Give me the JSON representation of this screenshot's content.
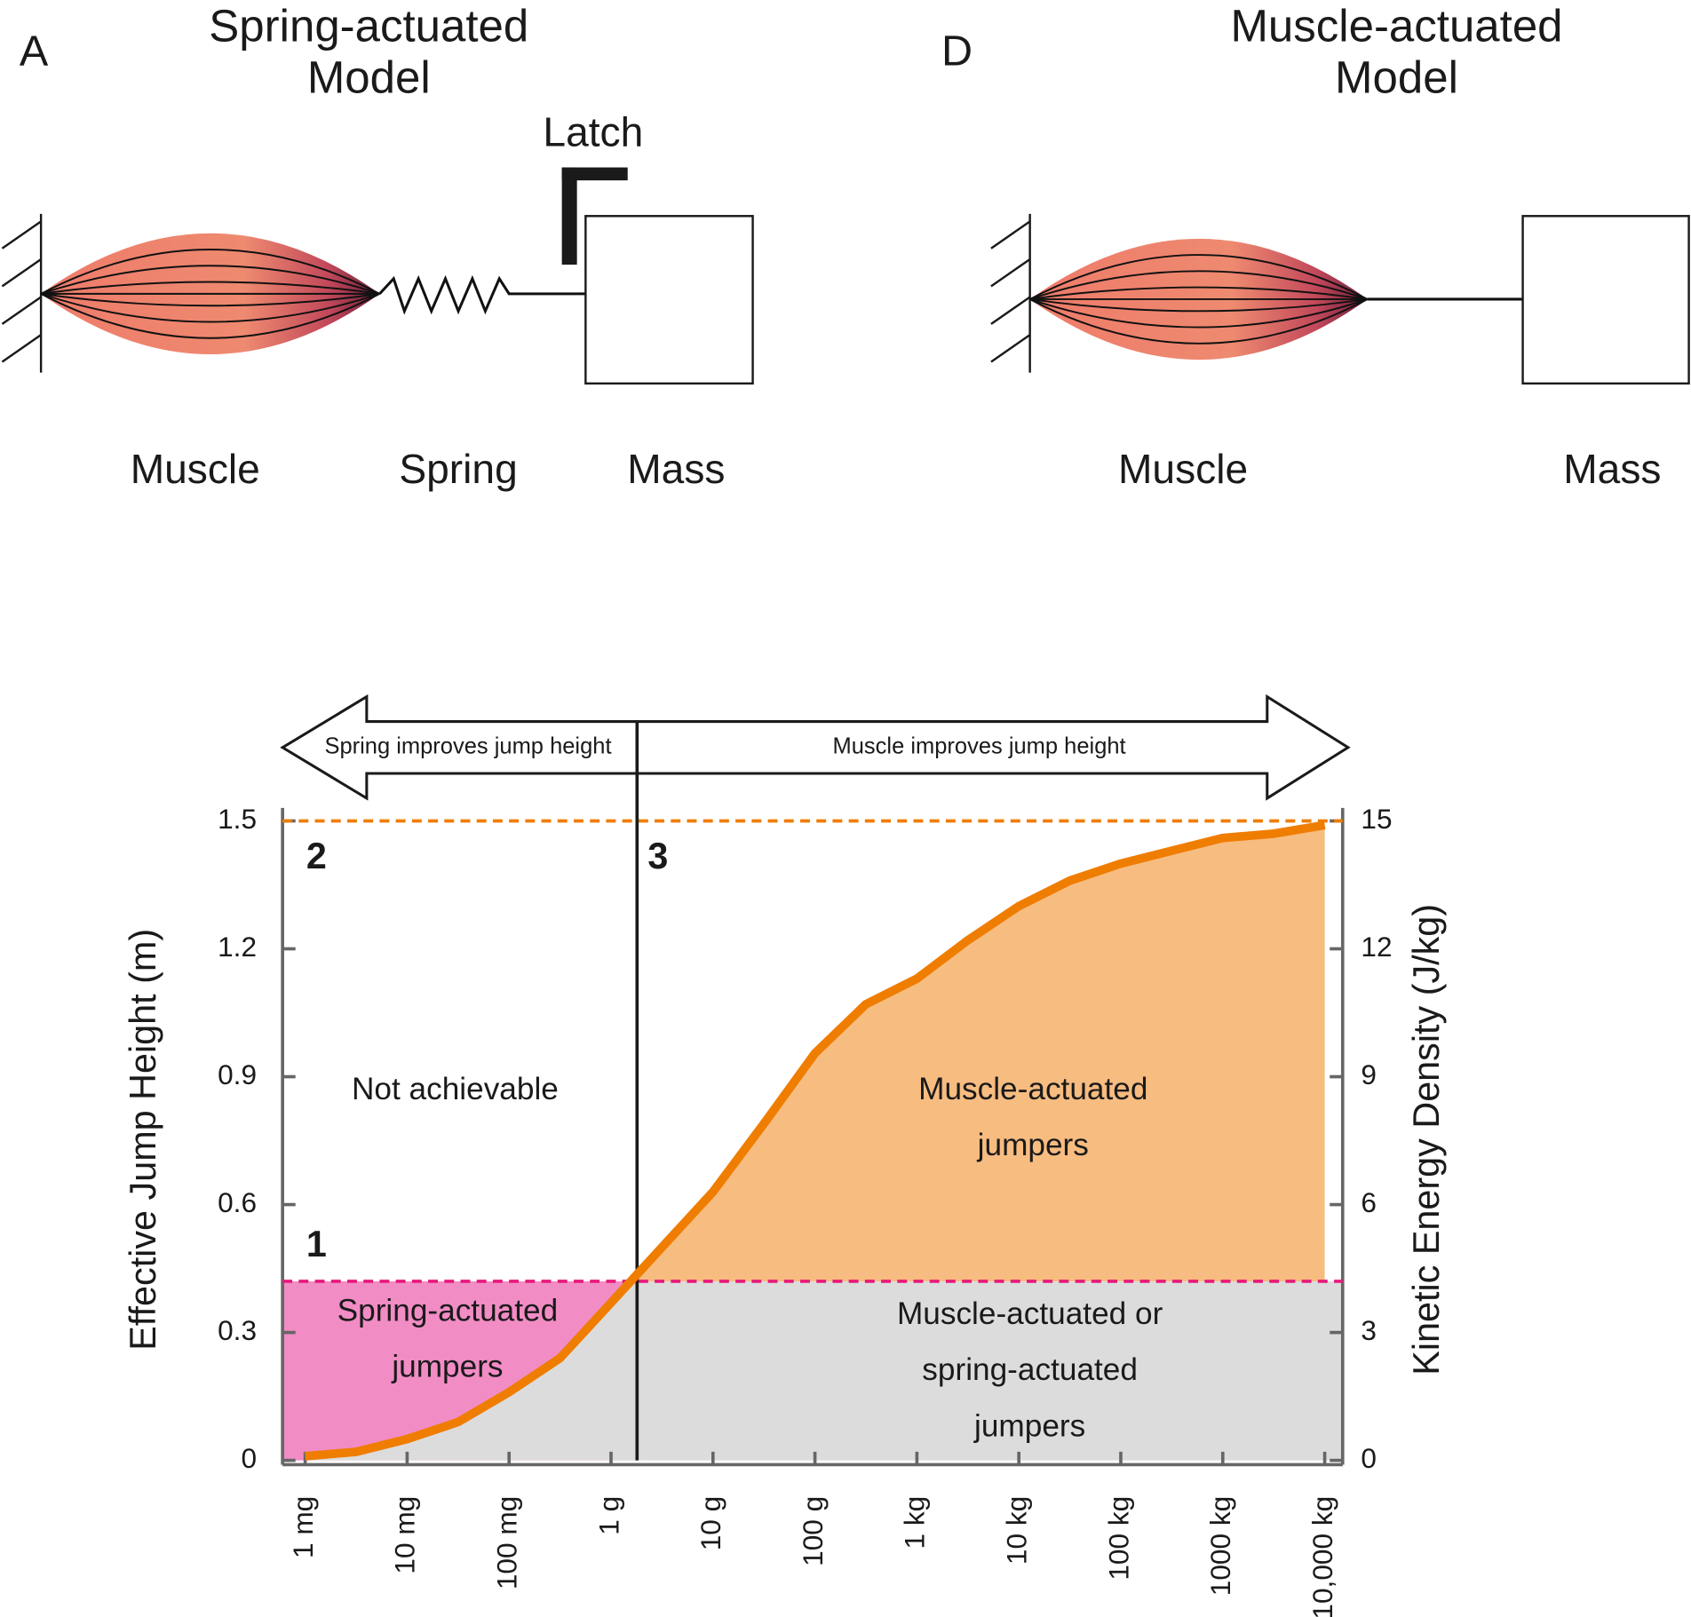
{
  "panels": [
    {
      "letter": "A",
      "title": [
        "Spring-actuated",
        "Model"
      ],
      "latch": "Latch",
      "labels": [
        "Muscle",
        "Spring",
        "Mass"
      ]
    },
    {
      "letter": "D",
      "title": [
        "Muscle-actuated",
        "Model"
      ],
      "labels": [
        "Muscle",
        "Mass"
      ]
    }
  ],
  "chart_data": {
    "type": "line",
    "y_label": "Effective Jump Height (m)",
    "y2_label": "Kinetic Energy Density (J/kg)",
    "log_x": true,
    "x": [
      0.001,
      0.00316,
      0.01,
      0.0316,
      0.1,
      0.316,
      1,
      3.16,
      10,
      31.6,
      100,
      316,
      1000,
      3160,
      10000,
      31600,
      100000,
      316000,
      1000000,
      3160000,
      10000000
    ],
    "series": [
      {
        "color": "#ef7d00",
        "values": [
          0.01,
          0.02,
          0.05,
          0.09,
          0.16,
          0.24,
          0.37,
          0.5,
          0.63,
          0.79,
          0.955,
          1.07,
          1.13,
          1.22,
          1.3,
          1.36,
          1.4,
          1.43,
          1.46,
          1.47,
          1.49
        ]
      }
    ],
    "xlim": [
      0.0006,
      15000000
    ],
    "xticks": [
      {
        "value": 0.001,
        "label": "1 mg"
      },
      {
        "value": 0.01,
        "label": "10 mg"
      },
      {
        "value": 0.1,
        "label": "100 mg"
      },
      {
        "value": 1,
        "label": "1 g"
      },
      {
        "value": 10,
        "label": "10 g"
      },
      {
        "value": 100,
        "label": "100 g"
      },
      {
        "value": 1000,
        "label": "1 kg"
      },
      {
        "value": 10000,
        "label": "10 kg"
      },
      {
        "value": 100000,
        "label": "100 kg"
      },
      {
        "value": 1000000,
        "label": "1000 kg"
      },
      {
        "value": 10000000,
        "label": "10,000 kg"
      }
    ],
    "ylim": [
      0,
      1.5
    ],
    "yticks": [
      0,
      0.3,
      0.6,
      0.9,
      1.2,
      1.5
    ],
    "y2lim": [
      0,
      15
    ],
    "y2ticks": [
      0,
      3,
      6,
      9,
      12,
      15
    ],
    "reference_lines": [
      {
        "axis": "y",
        "value": 1.5,
        "color": "#ef7d00",
        "style": "dashed",
        "label": "2"
      },
      {
        "axis": "y",
        "value": 0.42,
        "color": "#e6197a",
        "style": "dashed",
        "label": "1"
      },
      {
        "axis": "x",
        "value": 1.8,
        "color": "#1a1a1a",
        "style": "solid",
        "label": "3"
      }
    ],
    "regions": [
      {
        "lines": [
          "Not achievable"
        ]
      },
      {
        "lines": [
          "Spring-actuated",
          "jumpers"
        ],
        "color": "#f28cc5"
      },
      {
        "lines": [
          "Muscle-actuated",
          "jumpers"
        ],
        "color": "#f7bc80"
      },
      {
        "lines": [
          "Muscle-actuated or",
          "spring-actuated",
          "jumpers"
        ],
        "color": "#dcdcdc"
      }
    ],
    "arrow_labels": [
      "Spring improves jump height",
      "Muscle improves jump height"
    ]
  }
}
